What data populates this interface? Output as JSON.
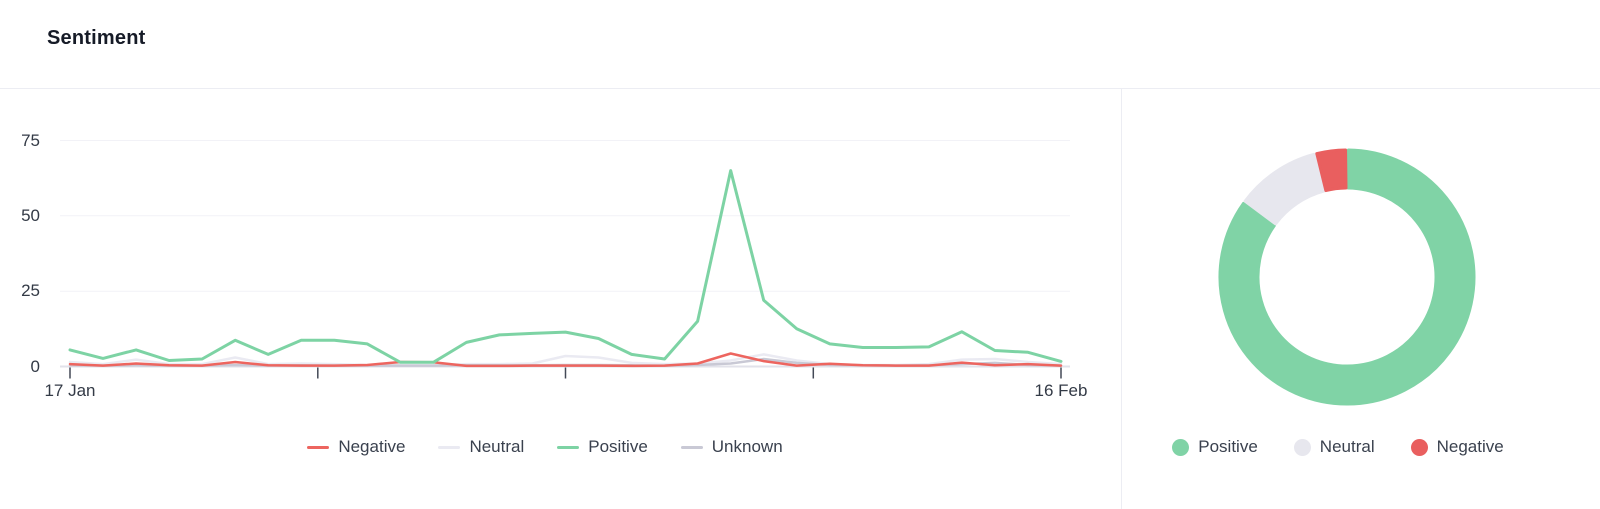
{
  "header": {
    "title": "Sentiment"
  },
  "chart_data": [
    {
      "type": "line",
      "points": 31,
      "x_range": [
        "17 Jan",
        "16 Feb"
      ],
      "x_tick_labels": [
        "17 Jan",
        "",
        "",
        "",
        "16 Feb"
      ],
      "yticks": [
        0,
        25,
        50,
        75
      ],
      "ylim": [
        0,
        80
      ],
      "grid": true,
      "legend_position": "bottom",
      "series": [
        {
          "name": "Negative",
          "color": "#ed655f",
          "values": [
            0.8,
            0.3,
            1,
            0.4,
            0.3,
            1.5,
            0.4,
            0.3,
            0.3,
            0.5,
            1.5,
            1.4,
            0.2,
            0.2,
            0.3,
            0.3,
            0.3,
            0.2,
            0.3,
            1,
            4.3,
            1.8,
            0.3,
            0.9,
            0.4,
            0.3,
            0.3,
            1.3,
            0.4,
            0.8,
            0.3
          ]
        },
        {
          "name": "Neutral",
          "color": "#eaeaf2",
          "values": [
            1.5,
            0.8,
            2.3,
            0.8,
            0.8,
            3,
            0.8,
            1,
            0.8,
            0.5,
            0.5,
            0.5,
            0.8,
            0.8,
            1,
            3.5,
            3,
            1.2,
            0.8,
            1,
            2,
            4,
            2,
            0.8,
            0.5,
            0.5,
            0.8,
            2.3,
            2.5,
            1.5,
            0.8
          ]
        },
        {
          "name": "Positive",
          "color": "#7dd3a4",
          "values": [
            5.5,
            2.7,
            5.5,
            2,
            2.5,
            8.7,
            4,
            8.7,
            8.7,
            7.5,
            1.4,
            1.4,
            8,
            10.5,
            11,
            11.4,
            9.3,
            4,
            2.5,
            15,
            65,
            22,
            12.5,
            7.5,
            6.3,
            6.3,
            6.5,
            11.5,
            5.3,
            4.7,
            1.7
          ]
        },
        {
          "name": "Unknown",
          "color": "#c9c9d5",
          "values": [
            0.4,
            0.3,
            0.4,
            0.3,
            0.3,
            0.5,
            0.3,
            0.4,
            0.3,
            0.3,
            0.3,
            0.3,
            0.4,
            0.4,
            0.4,
            0.5,
            0.5,
            0.4,
            0.3,
            0.5,
            1,
            2.5,
            1.2,
            0.5,
            0.4,
            0.3,
            0.4,
            0.8,
            1.2,
            0.5,
            0.3
          ]
        }
      ]
    },
    {
      "type": "donut",
      "legend_position": "bottom",
      "slices": [
        {
          "label": "Positive",
          "value": 85,
          "color": "#80d3a6"
        },
        {
          "label": "Neutral",
          "value": 11,
          "color": "#e7e7ee"
        },
        {
          "label": "Negative",
          "value": 4,
          "color": "#e95f5f"
        }
      ]
    }
  ],
  "colors": {
    "divider": "#ecedf3",
    "gridline": "#f2f2f7",
    "axis_line": "#e2e2ea",
    "tick": "#434956",
    "axis_text": "#333a46",
    "legend_text": "#3a414e",
    "title_text": "#161b27"
  }
}
